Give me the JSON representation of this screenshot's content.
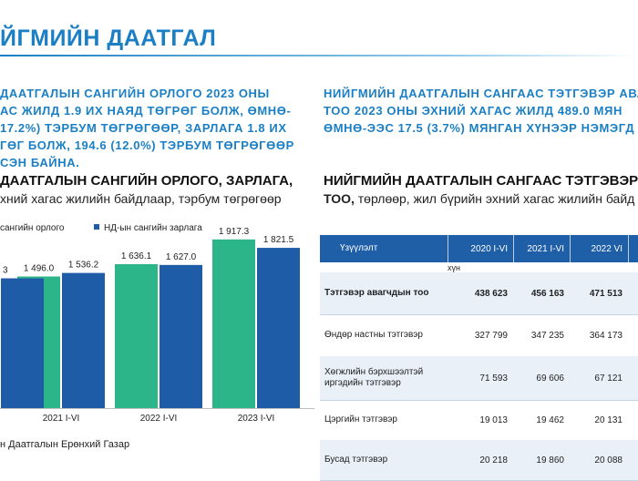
{
  "header": {
    "title": "ЙГМИЙН ДААТГАЛ"
  },
  "left_blurb": {
    "lines": [
      "ДААТГАЛЫН САНГИЙН ОРЛОГО 2023 ОНЫ",
      "АС ЖИЛД 1.9 ИХ НАЯД ТӨГРӨГ БОЛЖ, ӨМНӨ-",
      "17.2%) ТЭРБУМ ТӨГРӨГӨӨР, ЗАРЛАГА 1.8 ИХ",
      "ГӨГ БОЛЖ, 194.6 (12.0%) ТЭРБУМ ТӨГРӨГӨӨР",
      "СЭН БАЙНА."
    ]
  },
  "right_blurb": {
    "lines": [
      "НИЙГМИЙН ДААТГАЛЫН САНГААС ТЭТГЭВЭР АВА",
      "ТОО 2023 ОНЫ ЭХНИЙ ХАГАС ЖИЛД 489.0 МЯН",
      "ӨМНӨ-ЭЭС 17.5 (3.7%) МЯНГАН ХҮНЭЭР НЭМЭГД"
    ]
  },
  "chart": {
    "title": "ДААТГАЛЫН САНГИЙН ОРЛОГО, ЗАРЛАГА,",
    "subtitle": "хний хагас жилийн байдлаар, тэрбум төгрөгөөр",
    "legend": {
      "income_label": "сангийн орлого",
      "expense_label": "НД-ын сангийн зарлага"
    },
    "source": "н Даатгалын Ерөнхий Газар"
  },
  "chart_data": {
    "type": "bar",
    "title": "ДААТГАЛЫН САНГИЙН ОРЛОГО, ЗАРЛАГА,",
    "categories": [
      "",
      "2021 I-VI",
      "2022 I-VI",
      "2023 I-VI"
    ],
    "series": [
      {
        "name": "сангийн орлого",
        "values": [
          null,
          1496.0,
          1636.1,
          1917.3
        ],
        "labels": [
          "",
          "1 496.0",
          "1 636.1",
          "1 917.3"
        ],
        "color": "#2bb589"
      },
      {
        "name": "НД-ын сангийн зарлага",
        "values": [
          null,
          1536.2,
          1627.0,
          1821.5
        ],
        "labels": [
          "3",
          "1 536.2",
          "1 627.0",
          "1 821.5"
        ],
        "color": "#1f5ca8"
      }
    ],
    "xlabel": "",
    "ylabel": "",
    "ylim": [
      0,
      2050
    ],
    "grid": false,
    "legend_position": "top-left"
  },
  "table": {
    "title": "НИЙГМИЙН ДААТГАЛЫН САНГААС ТЭТГЭВЭР А",
    "subtitle_bold": "ТОО,",
    "subtitle_rest": " төрлөөр, жил бүрийн эхний хагас жилийн байд",
    "columns": [
      "Үзүүлэлт",
      "2020 I-VI",
      "2021 I-VI",
      "2022 VI"
    ],
    "unit": "хүн",
    "rows": [
      {
        "label": "Тэтгэвэр авагчдын тоо",
        "values": [
          "438 623",
          "456 163",
          "471 513"
        ]
      },
      {
        "label": "Өндөр настны тэтгэвэр",
        "values": [
          "327 799",
          "347 235",
          "364 173"
        ]
      },
      {
        "label": "Хөгжлийн бэрхшээлтэй иргэдийн тэтгэвэр",
        "label_lines": [
          "Хөгжлийн бэрхшээлтэй",
          "иргэдийн тэтгэвэр"
        ],
        "values": [
          "71 593",
          "69 606",
          "67 121"
        ]
      },
      {
        "label": "Цэргийн тэтгэвэр",
        "values": [
          "19 013",
          "19 462",
          "20 131"
        ]
      },
      {
        "label": "Бусад тэтгэвэр",
        "values": [
          "20 218",
          "19 860",
          "20 088"
        ]
      }
    ]
  }
}
